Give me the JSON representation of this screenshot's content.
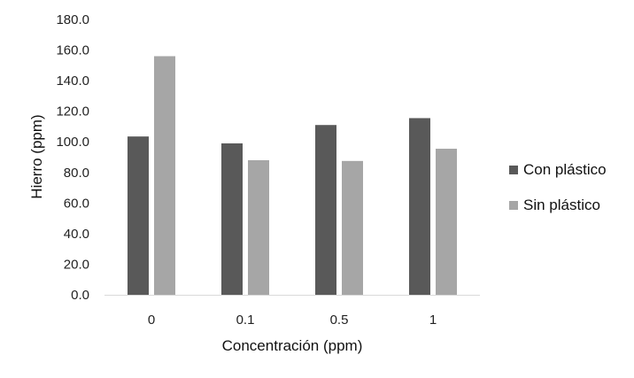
{
  "chart_data": {
    "type": "bar",
    "title": "",
    "xlabel": "Concentración (ppm)",
    "ylabel": "Hierro (ppm)",
    "categories": [
      "0",
      "0.1",
      "0.5",
      "1"
    ],
    "ylim": [
      0,
      180
    ],
    "yticks": [
      "0.0",
      "20.0",
      "40.0",
      "60.0",
      "80.0",
      "100.0",
      "120.0",
      "140.0",
      "160.0",
      "180.0"
    ],
    "grid": false,
    "legend_position": "right",
    "series": [
      {
        "name": "Con plástico",
        "color": "#595959",
        "values": [
          103.5,
          99.0,
          111.0,
          115.5
        ]
      },
      {
        "name": "Sin plástico",
        "color": "#a6a6a6",
        "values": [
          156.0,
          88.0,
          87.5,
          95.5
        ]
      }
    ]
  }
}
